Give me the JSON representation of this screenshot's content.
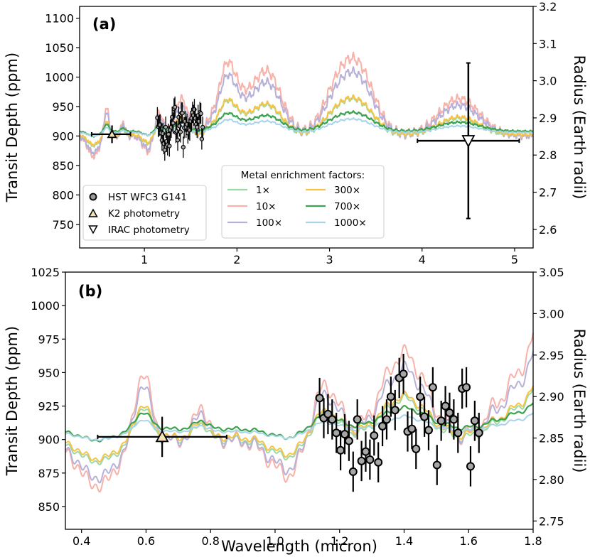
{
  "chart_data": [
    {
      "panel": "(a)",
      "type": "line",
      "xlim": [
        0.3,
        5.2
      ],
      "ylim": [
        710,
        1120
      ],
      "ylim_right": [
        2.55,
        3.2
      ],
      "xticks": [
        1,
        2,
        3,
        4,
        5
      ],
      "yticks": [
        750,
        800,
        850,
        900,
        950,
        1000,
        1050,
        1100
      ],
      "yticks_right": [
        2.6,
        2.7,
        2.8,
        2.9,
        3.0,
        3.1,
        3.2
      ],
      "ylabel": "Transit Depth (ppm)",
      "ylabel_right": "Radius (Earth radii)",
      "xlabel": "",
      "legend_title": "Metal enrichment factors:",
      "series": [
        {
          "name": "1×",
          "color": "#9fd8a8",
          "amp": 0.55,
          "offset": 900
        },
        {
          "name": "10×",
          "color": "#f7b2aa",
          "amp": 1.15,
          "offset": 900
        },
        {
          "name": "100×",
          "color": "#b7b1da",
          "amp": 0.95,
          "offset": 900
        },
        {
          "name": "300×",
          "color": "#f6c445",
          "amp": 0.55,
          "offset": 902
        },
        {
          "name": "700×",
          "color": "#3da24f",
          "amp": 0.28,
          "offset": 908
        },
        {
          "name": "1000×",
          "color": "#a8d4ea",
          "amp": 0.2,
          "offset": 906
        }
      ],
      "observations": {
        "hst_wfc3_g141": {
          "label": "HST WFC3 G141",
          "x": [
            1.14,
            1.15,
            1.16,
            1.17,
            1.18,
            1.19,
            1.2,
            1.21,
            1.22,
            1.23,
            1.24,
            1.25,
            1.26,
            1.27,
            1.28,
            1.29,
            1.3,
            1.31,
            1.32,
            1.33,
            1.34,
            1.35,
            1.36,
            1.37,
            1.38,
            1.39,
            1.4,
            1.41,
            1.42,
            1.43,
            1.44,
            1.45,
            1.46,
            1.47,
            1.48,
            1.49,
            1.5,
            1.51,
            1.52,
            1.53,
            1.54,
            1.55,
            1.56,
            1.57,
            1.58,
            1.59,
            1.6,
            1.61,
            1.62,
            1.63
          ],
          "y": [
            931,
            916,
            918,
            919,
            905,
            893,
            904,
            887,
            876,
            915,
            891,
            885,
            903,
            883,
            910,
            915,
            932,
            922,
            946,
            949,
            906,
            908,
            893,
            932,
            917,
            907,
            939,
            939,
            881,
            914,
            925,
            915,
            920,
            905,
            912,
            910,
            925,
            930,
            940,
            935,
            945,
            930,
            920,
            915,
            935,
            925,
            940,
            938,
            895,
            915
          ],
          "err": 18
        },
        "k2": {
          "label": "K2 photometry",
          "x": 0.65,
          "y": 903,
          "xerr": [
            0.43,
            0.85
          ],
          "yerr": 15
        },
        "irac": {
          "label": "IRAC photometry",
          "x": 4.5,
          "y": 892,
          "xerr": [
            3.95,
            5.05
          ],
          "yerr": 132
        }
      }
    },
    {
      "panel": "(b)",
      "type": "line",
      "xlim": [
        0.35,
        1.8
      ],
      "ylim": [
        833,
        1025
      ],
      "ylim_right": [
        2.74,
        3.05
      ],
      "xticks": [
        0.4,
        0.6,
        0.8,
        1.0,
        1.2,
        1.4,
        1.6,
        1.8
      ],
      "xtick_labels": [
        "0.4",
        "0.6",
        "0.8",
        "1.0",
        "1.2",
        "1.4",
        "1.6",
        "1.8"
      ],
      "yticks": [
        850,
        875,
        900,
        925,
        950,
        975,
        1000,
        1025
      ],
      "yticks_right": [
        2.75,
        2.8,
        2.85,
        2.9,
        2.95,
        3.0,
        3.05
      ],
      "ylabel": "Transit Depth (ppm)",
      "ylabel_right": "Radius (Earth radii)",
      "xlabel": "Wavelength (micron)",
      "observations": {
        "hst_wfc3_g141": {
          "x": [
            1.138,
            1.151,
            1.164,
            1.177,
            1.19,
            1.203,
            1.216,
            1.229,
            1.242,
            1.255,
            1.268,
            1.281,
            1.294,
            1.307,
            1.32,
            1.333,
            1.346,
            1.359,
            1.372,
            1.385,
            1.398,
            1.411,
            1.424,
            1.437,
            1.45,
            1.463,
            1.476,
            1.489,
            1.502,
            1.515,
            1.528,
            1.541,
            1.554,
            1.567,
            1.58,
            1.593,
            1.606,
            1.619,
            1.632
          ],
          "y": [
            931,
            916,
            919,
            915,
            905,
            892,
            904,
            899,
            876,
            915,
            884,
            891,
            885,
            903,
            883,
            910,
            915,
            932,
            922,
            946,
            949,
            906,
            908,
            893,
            932,
            917,
            907,
            939,
            881,
            914,
            925,
            920,
            915,
            905,
            938,
            939,
            880,
            914,
            905
          ],
          "err": 15
        },
        "k2": {
          "x": 0.65,
          "y": 902,
          "xerr": [
            0.45,
            0.85
          ],
          "yerr": 15
        }
      }
    }
  ]
}
